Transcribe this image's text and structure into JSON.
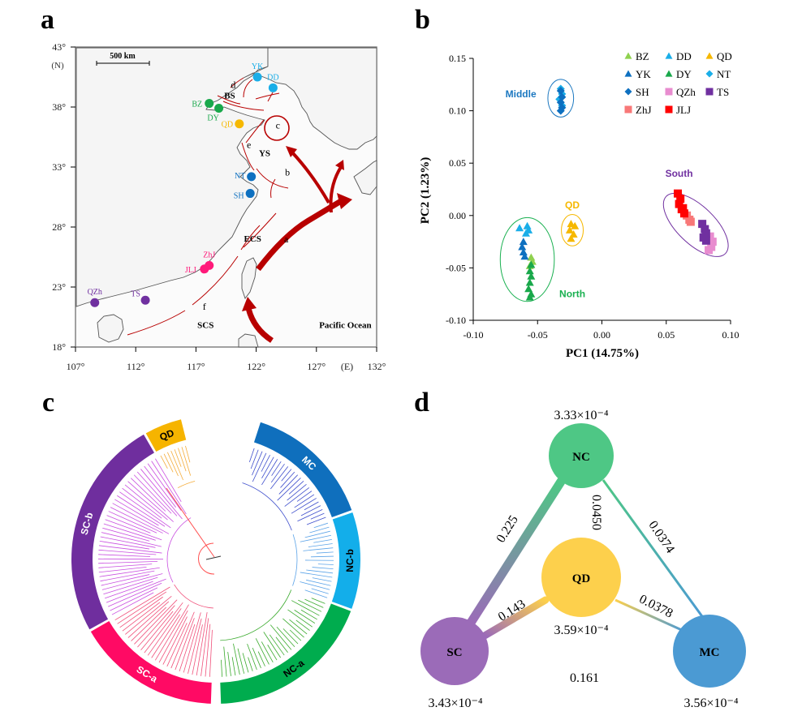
{
  "panels": {
    "a": {
      "letter": "a"
    },
    "b": {
      "letter": "b"
    },
    "c": {
      "letter": "c"
    },
    "d": {
      "letter": "d"
    }
  },
  "map": {
    "scale_bar": "500 km",
    "lat_unit": "(N)",
    "lon_unit": "(E)",
    "lat_ticks": [
      "43°",
      "38°",
      "33°",
      "28°",
      "23°",
      "18°"
    ],
    "lat_values": [
      43,
      38,
      33,
      28,
      23,
      18
    ],
    "lon_ticks": [
      "107°",
      "112°",
      "117°",
      "122°",
      "127°",
      "132°"
    ],
    "lon_values": [
      107,
      112,
      117,
      122,
      127,
      132
    ],
    "seas": [
      {
        "label": "BS",
        "lon": 119.8,
        "lat": 38.7
      },
      {
        "label": "YS",
        "lon": 122.7,
        "lat": 33.9
      },
      {
        "label": "ECS",
        "lon": 121.7,
        "lat": 26.8
      },
      {
        "label": "SCS",
        "lon": 117.8,
        "lat": 19.6
      },
      {
        "label": "Pacific Ocean",
        "lon": 129.4,
        "lat": 19.6
      }
    ],
    "current_labels": [
      {
        "label": "a",
        "lon": 124.5,
        "lat": 26.7
      },
      {
        "label": "b",
        "lon": 124.6,
        "lat": 32.3
      },
      {
        "label": "c",
        "lon": 123.8,
        "lat": 36.2
      },
      {
        "label": "d",
        "lon": 120.1,
        "lat": 39.6
      },
      {
        "label": "e",
        "lon": 121.4,
        "lat": 34.6
      },
      {
        "label": "f",
        "lon": 117.7,
        "lat": 21.1
      }
    ],
    "sites": [
      {
        "code": "YK",
        "lon": 122.1,
        "lat": 40.5,
        "color": "#1aaee8"
      },
      {
        "code": "DD",
        "lon": 123.4,
        "lat": 39.6,
        "color": "#1aaee8"
      },
      {
        "code": "BZ",
        "lon": 118.1,
        "lat": 38.3,
        "color": "#19a84b"
      },
      {
        "code": "DY",
        "lon": 118.9,
        "lat": 37.9,
        "color": "#19a84b"
      },
      {
        "code": "QD",
        "lon": 120.6,
        "lat": 36.6,
        "color": "#f6b800"
      },
      {
        "code": "NT",
        "lon": 121.6,
        "lat": 32.2,
        "color": "#0e70c0"
      },
      {
        "code": "SH",
        "lon": 121.5,
        "lat": 30.8,
        "color": "#0e70c0"
      },
      {
        "code": "ZhJ",
        "lon": 118.1,
        "lat": 24.8,
        "color": "#ff1a7a"
      },
      {
        "code": "JLJ",
        "lon": 117.7,
        "lat": 24.5,
        "color": "#ff1a7a"
      },
      {
        "code": "QZh",
        "lon": 108.6,
        "lat": 21.7,
        "color": "#7030a0"
      },
      {
        "code": "TS",
        "lon": 112.8,
        "lat": 21.9,
        "color": "#7030a0"
      }
    ]
  },
  "chart_data": [
    {
      "type": "scatter",
      "title": "",
      "xlabel": "PC1 (14.75%)",
      "ylabel": "PC2 (1.23%)",
      "xlim": [
        -0.1,
        0.1
      ],
      "ylim": [
        -0.1,
        0.15
      ],
      "x_ticks": [
        "-0.10",
        "-0.05",
        "0.00",
        "0.05",
        "0.10"
      ],
      "x_tick_values": [
        -0.1,
        -0.05,
        0.0,
        0.05,
        0.1
      ],
      "y_ticks": [
        "0.15",
        "0.10",
        "0.05",
        "0.00",
        "-0.05",
        "-0.10"
      ],
      "y_tick_values": [
        0.15,
        0.1,
        0.05,
        0.0,
        -0.05,
        -0.1
      ],
      "legend_position": "top-right",
      "series": [
        {
          "name": "BZ",
          "marker": "triangle",
          "color": "#8fd14f",
          "points": [
            [
              -0.055,
              -0.04
            ],
            [
              -0.054,
              -0.044
            ],
            [
              -0.056,
              -0.048
            ]
          ]
        },
        {
          "name": "DD",
          "marker": "triangle",
          "color": "#1aaee8",
          "points": [
            [
              -0.064,
              -0.012
            ],
            [
              -0.058,
              -0.01
            ],
            [
              -0.057,
              -0.014
            ],
            [
              -0.059,
              -0.017
            ]
          ]
        },
        {
          "name": "QD",
          "marker": "triangle",
          "color": "#f6b800",
          "points": [
            [
              -0.024,
              -0.008
            ],
            [
              -0.021,
              -0.01
            ],
            [
              -0.025,
              -0.014
            ],
            [
              -0.022,
              -0.018
            ],
            [
              -0.024,
              -0.022
            ]
          ]
        },
        {
          "name": "YK",
          "marker": "triangle",
          "color": "#0e70c0",
          "points": [
            [
              -0.061,
              -0.025
            ],
            [
              -0.062,
              -0.03
            ],
            [
              -0.061,
              -0.035
            ],
            [
              -0.06,
              -0.039
            ]
          ]
        },
        {
          "name": "DY",
          "marker": "triangle",
          "color": "#19a84b",
          "points": [
            [
              -0.055,
              -0.047
            ],
            [
              -0.056,
              -0.053
            ],
            [
              -0.055,
              -0.058
            ],
            [
              -0.056,
              -0.064
            ],
            [
              -0.057,
              -0.07
            ],
            [
              -0.055,
              -0.075
            ],
            [
              -0.056,
              -0.078
            ]
          ]
        },
        {
          "name": "NT",
          "marker": "diamond",
          "color": "#1aaee8",
          "points": [
            [
              -0.032,
              0.121
            ],
            [
              -0.031,
              0.116
            ],
            [
              -0.033,
              0.111
            ],
            [
              -0.031,
              0.105
            ]
          ]
        },
        {
          "name": "SH",
          "marker": "diamond",
          "color": "#0e70c0",
          "points": [
            [
              -0.032,
              0.119
            ],
            [
              -0.031,
              0.113
            ],
            [
              -0.032,
              0.108
            ],
            [
              -0.031,
              0.103
            ],
            [
              -0.032,
              0.1
            ]
          ]
        },
        {
          "name": "QZh",
          "marker": "square",
          "color": "#e88ccf",
          "points": [
            [
              0.084,
              -0.02
            ],
            [
              0.086,
              -0.025
            ],
            [
              0.085,
              -0.03
            ],
            [
              0.083,
              -0.033
            ]
          ]
        },
        {
          "name": "TS",
          "marker": "square",
          "color": "#7030a0",
          "points": [
            [
              0.078,
              -0.008
            ],
            [
              0.08,
              -0.013
            ],
            [
              0.081,
              -0.017
            ],
            [
              0.079,
              -0.021
            ],
            [
              0.081,
              -0.024
            ]
          ]
        },
        {
          "name": "ZhJ",
          "marker": "square",
          "color": "#f87878",
          "points": [
            [
              0.066,
              -0.0
            ],
            [
              0.068,
              -0.004
            ],
            [
              0.069,
              -0.006
            ]
          ]
        },
        {
          "name": "JLJ",
          "marker": "square",
          "color": "#ff0000",
          "points": [
            [
              0.059,
              0.021
            ],
            [
              0.061,
              0.016
            ],
            [
              0.06,
              0.011
            ],
            [
              0.062,
              0.006
            ],
            [
              0.064,
              0.002
            ],
            [
              0.063,
              0.007
            ]
          ]
        }
      ],
      "group_labels": [
        {
          "label": "Middle",
          "color": "#1c78c0",
          "x": -0.063,
          "y": 0.113
        },
        {
          "label": "QD",
          "color": "#f6b800",
          "x": -0.023,
          "y": 0.007
        },
        {
          "label": "North",
          "color": "#19b050",
          "x": -0.023,
          "y": -0.078
        },
        {
          "label": "South",
          "color": "#7030a0",
          "x": 0.06,
          "y": 0.037
        }
      ],
      "ellipses": [
        {
          "name": "Middle",
          "color": "#1c78c0",
          "cx": -0.032,
          "cy": 0.112,
          "rx": 0.01,
          "ry": 0.018,
          "angle": 0
        },
        {
          "name": "QD",
          "color": "#f6b800",
          "cx": -0.023,
          "cy": -0.014,
          "rx": 0.0085,
          "ry": 0.015,
          "angle": 0
        },
        {
          "name": "North",
          "color": "#19b050",
          "cx": -0.058,
          "cy": -0.042,
          "rx": 0.021,
          "ry": 0.04,
          "angle": 0
        },
        {
          "name": "South",
          "color": "#7030a0",
          "cx": 0.073,
          "cy": -0.009,
          "rx": 0.032,
          "ry": 0.018,
          "angle": 44
        }
      ]
    },
    {
      "type": "network",
      "title": "",
      "nodes": [
        {
          "id": "NC",
          "value": "3.33×10⁻⁴",
          "color": "#4ec785"
        },
        {
          "id": "QD",
          "value": "3.59×10⁻⁴",
          "color": "#fdd04c"
        },
        {
          "id": "SC",
          "value": "3.43×10⁻⁴",
          "color": "#9b6bb8"
        },
        {
          "id": "MC",
          "value": "3.56×10⁻⁴",
          "color": "#4b9ad3"
        }
      ],
      "edges": [
        {
          "from": "NC",
          "to": "SC",
          "value": "0.225"
        },
        {
          "from": "NC",
          "to": "QD",
          "value": "0.0450"
        },
        {
          "from": "NC",
          "to": "MC",
          "value": "0.0374"
        },
        {
          "from": "QD",
          "to": "SC",
          "value": "0.143"
        },
        {
          "from": "QD",
          "to": "MC",
          "value": "0.0378"
        },
        {
          "from": "SC",
          "to": "MC",
          "value": "0.161"
        }
      ]
    }
  ],
  "tree": {
    "clades": [
      {
        "label": "MC",
        "color": "#0f6fbd",
        "branch_color": "#3e4ecc",
        "start_deg": 18,
        "end_deg": 70
      },
      {
        "label": "NC-b",
        "color": "#13aeea",
        "branch_color": "#5ba3e8",
        "start_deg": 71,
        "end_deg": 110
      },
      {
        "label": "NC-a",
        "color": "#00ac4e",
        "branch_color": "#3aaa2d",
        "start_deg": 111,
        "end_deg": 178
      },
      {
        "label": "SC-a",
        "color": "#ff0a64",
        "branch_color": "#f0507a",
        "start_deg": 182,
        "end_deg": 240
      },
      {
        "label": "SC-b",
        "color": "#6f2e9e",
        "branch_color": "#c94ee0",
        "start_deg": 241,
        "end_deg": 330
      },
      {
        "label": "QD",
        "color": "#f6b400",
        "branch_color": "#f4ac3a",
        "start_deg": 331,
        "end_deg": 346
      }
    ]
  }
}
